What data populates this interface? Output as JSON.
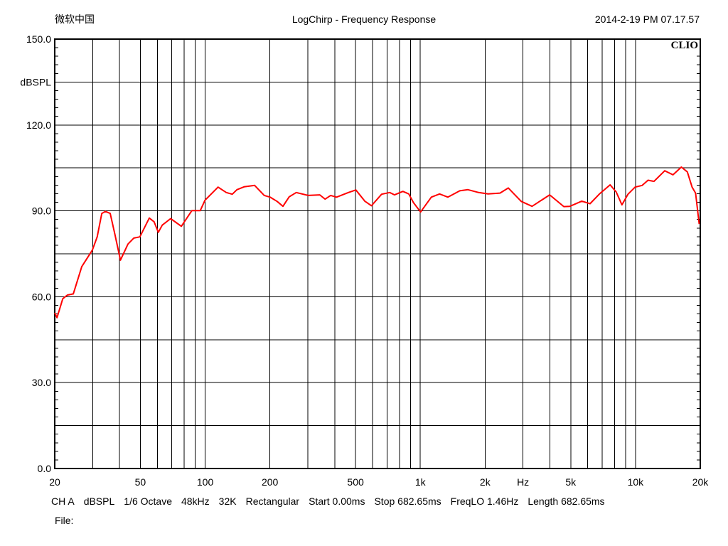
{
  "header": {
    "left": "微软中国",
    "title": "LogChirp - Frequency Response",
    "datetime": "2014-2-19 PM 07.17.57"
  },
  "logo": "CLIO",
  "footer": {
    "settings": [
      "CH A",
      "dBSPL",
      "1/6 Octave",
      "48kHz",
      "32K",
      "Rectangular",
      "Start 0.00ms",
      "Stop 682.65ms",
      "FreqLO 1.46Hz",
      "Length 682.65ms"
    ],
    "file_label": "File:"
  },
  "chart_data": {
    "type": "line",
    "title": "LogChirp - Frequency Response",
    "xlabel": "Hz",
    "ylabel": "dBSPL",
    "xscale": "log",
    "xlim": [
      20,
      20000
    ],
    "ylim": [
      0,
      150
    ],
    "grid": true,
    "line_color": "#ff0000",
    "y_ticks": [
      {
        "v": 150,
        "label": "150.0"
      },
      {
        "v": 120,
        "label": "120.0"
      },
      {
        "v": 90,
        "label": "90.0"
      },
      {
        "v": 60,
        "label": "60.0"
      },
      {
        "v": 30,
        "label": "30.0"
      },
      {
        "v": 0,
        "label": "0.0"
      }
    ],
    "y_unit_label_at": 135,
    "y_grid": [
      0,
      15,
      30,
      45,
      60,
      75,
      90,
      105,
      120,
      135,
      150
    ],
    "x_grid": [
      20,
      30,
      40,
      50,
      60,
      70,
      80,
      90,
      100,
      200,
      300,
      400,
      500,
      600,
      700,
      800,
      900,
      1000,
      2000,
      3000,
      4000,
      5000,
      6000,
      7000,
      8000,
      9000,
      10000,
      20000
    ],
    "x_ticks": [
      {
        "v": 20,
        "label": "20"
      },
      {
        "v": 50,
        "label": "50"
      },
      {
        "v": 100,
        "label": "100"
      },
      {
        "v": 200,
        "label": "200"
      },
      {
        "v": 500,
        "label": "500"
      },
      {
        "v": 1000,
        "label": "1k"
      },
      {
        "v": 2000,
        "label": "2k"
      },
      {
        "v": 3000,
        "label": "Hz"
      },
      {
        "v": 5000,
        "label": "5k"
      },
      {
        "v": 10000,
        "label": "10k"
      },
      {
        "v": 20000,
        "label": "20k"
      }
    ],
    "series": [
      {
        "x": [
          20,
          20.5,
          21.8,
          22.9,
          24.4,
          26.7,
          29.9,
          31.5,
          33.1,
          34.4,
          36.2,
          38.1,
          40.4,
          43.8,
          46.6,
          49.7,
          55,
          57.9,
          60.6,
          63.2,
          69.1,
          77.5,
          86.8,
          94.9,
          99.8,
          114.8,
          125.4,
          133.7,
          140.6,
          151.7,
          169.9,
          188.2,
          200.5,
          216,
          230,
          245.6,
          265,
          301,
          341,
          361,
          383,
          408,
          463,
          502,
          552,
          593,
          661,
          721,
          759,
          830,
          884,
          929,
          1003,
          1125,
          1229,
          1343,
          1525,
          1665,
          1867,
          2065,
          2345,
          2564,
          2946,
          3305,
          3992,
          4646,
          4955,
          5625,
          6150,
          6800,
          7625,
          8130,
          8650,
          9226,
          9955,
          10740,
          11430,
          12190,
          13670,
          14930,
          16330,
          17410,
          18330,
          19020,
          19770
        ],
        "y": [
          54.4,
          52.7,
          59.3,
          60.6,
          61,
          70.5,
          76.3,
          80.9,
          89.1,
          89.8,
          89.1,
          81.7,
          72.8,
          78.4,
          80.5,
          80.9,
          87.5,
          86.2,
          82.5,
          85,
          87.3,
          84.6,
          90.1,
          90.1,
          93.7,
          98.3,
          96.4,
          95.8,
          97.4,
          98.4,
          98.9,
          95.4,
          94.8,
          93.3,
          91.6,
          94.9,
          96.4,
          95.4,
          95.6,
          94.1,
          95.4,
          94.8,
          96.4,
          97.3,
          93.4,
          91.8,
          95.8,
          96.4,
          95.6,
          96.8,
          95.9,
          92.9,
          89.6,
          94.8,
          95.9,
          94.8,
          97,
          97.4,
          96.4,
          95.9,
          96.2,
          98,
          93.3,
          91.6,
          95.6,
          91.5,
          91.6,
          93.4,
          92.5,
          95.9,
          99.1,
          96.6,
          92.1,
          95.8,
          98.3,
          98.9,
          100.7,
          100.3,
          104,
          102.6,
          105.3,
          103.6,
          98.3,
          96.2,
          85.4
        ]
      }
    ]
  }
}
